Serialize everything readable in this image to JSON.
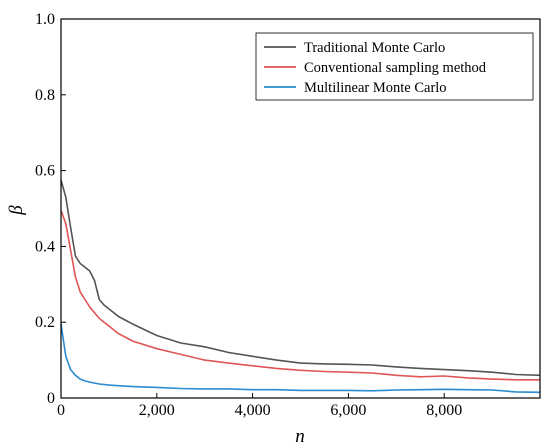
{
  "chart_data": {
    "type": "line",
    "xlabel": "n",
    "ylabel": "β",
    "xlim": [
      0,
      10000
    ],
    "ylim": [
      0,
      1.0
    ],
    "x_ticks": [
      0,
      2000,
      4000,
      6000,
      8000
    ],
    "x_tick_labels": [
      "0",
      "2,000",
      "4,000",
      "6,000",
      "8,000"
    ],
    "y_ticks": [
      0,
      0.2,
      0.4,
      0.6,
      0.8,
      1.0
    ],
    "y_tick_labels": [
      "0",
      "0.2",
      "0.4",
      "0.6",
      "0.8",
      "1.0"
    ],
    "grid": false,
    "legend_position": "top-right",
    "series": [
      {
        "name": "Traditional Monte Carlo",
        "color": "#555555",
        "x": [
          0,
          100,
          200,
          300,
          400,
          500,
          600,
          700,
          800,
          900,
          1000,
          1200,
          1500,
          2000,
          2500,
          3000,
          3500,
          4000,
          4500,
          5000,
          5500,
          6000,
          6500,
          7000,
          7500,
          8000,
          8500,
          9000,
          9500,
          10000
        ],
        "y": [
          0.575,
          0.53,
          0.45,
          0.375,
          0.355,
          0.345,
          0.335,
          0.31,
          0.26,
          0.245,
          0.235,
          0.215,
          0.195,
          0.165,
          0.145,
          0.135,
          0.12,
          0.11,
          0.1,
          0.092,
          0.09,
          0.089,
          0.087,
          0.082,
          0.078,
          0.075,
          0.072,
          0.068,
          0.062,
          0.06
        ]
      },
      {
        "name": "Conventional sampling method",
        "color": "#e05555",
        "x": [
          0,
          100,
          200,
          300,
          400,
          500,
          600,
          700,
          800,
          900,
          1000,
          1200,
          1500,
          2000,
          2500,
          3000,
          3500,
          4000,
          4500,
          5000,
          5500,
          6000,
          6500,
          7000,
          7500,
          8000,
          8500,
          9000,
          9500,
          10000
        ],
        "y": [
          0.495,
          0.46,
          0.39,
          0.32,
          0.28,
          0.26,
          0.24,
          0.225,
          0.21,
          0.2,
          0.19,
          0.17,
          0.15,
          0.13,
          0.115,
          0.1,
          0.092,
          0.085,
          0.078,
          0.073,
          0.07,
          0.068,
          0.066,
          0.06,
          0.056,
          0.058,
          0.053,
          0.05,
          0.048,
          0.048
        ]
      },
      {
        "name": "Multilinear Monte Carlo",
        "color": "#2a8bd0",
        "x": [
          0,
          100,
          200,
          300,
          400,
          500,
          600,
          800,
          1000,
          1500,
          2000,
          2500,
          3000,
          3500,
          4000,
          4500,
          5000,
          5500,
          6000,
          6500,
          7000,
          7500,
          8000,
          8500,
          9000,
          9500,
          10000
        ],
        "y": [
          0.195,
          0.11,
          0.075,
          0.06,
          0.05,
          0.045,
          0.042,
          0.037,
          0.034,
          0.03,
          0.028,
          0.025,
          0.024,
          0.024,
          0.022,
          0.022,
          0.02,
          0.02,
          0.02,
          0.019,
          0.021,
          0.022,
          0.023,
          0.022,
          0.021,
          0.016,
          0.015
        ]
      }
    ]
  }
}
